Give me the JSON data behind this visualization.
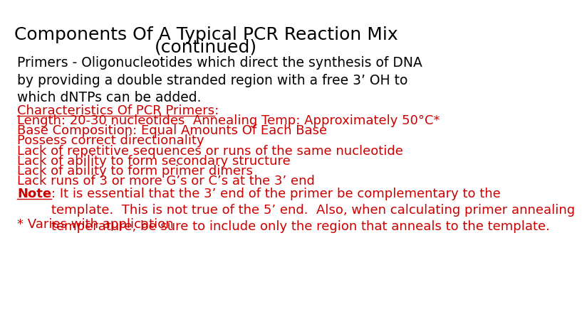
{
  "title_line1": "Components Of A Typical PCR Reaction Mix",
  "title_line2": "(continued)",
  "title_color": "#000000",
  "title_fontsize": 18,
  "bg_color": "#ffffff",
  "body_color": "#000000",
  "red_color": "#cc0000",
  "body_fontsize": 13.5,
  "red_fontsize": 13.0,
  "intro_text": "Primers - Oligonucleotides which direct the synthesis of DNA\nby providing a double stranded region with a free 3’ OH to\nwhich dNTPs can be added.",
  "characteristics_label": "Characteristics Of PCR Primers",
  "characteristics_colon": ":",
  "bullet_lines": [
    "Length: 20-30 nucleotides  Annealing Temp: Approximately 50°C*",
    "Base Composition: Equal Amounts Of Each Base",
    "Possess correct directionality",
    "Lack of repetitive sequences or runs of the same nucleotide",
    "Lack of ability to form secondary structure",
    "Lack of ability to form primer dimers",
    "Lack runs of 3 or more G’s or C’s at the 3’ end"
  ],
  "note_label": "Note",
  "note_colon": ": It is essential that the 3’ end of the primer be complementary to the\ntemplate.  This is not true of the 5’ end.  Also, when calculating primer annealing\ntemperature, be sure to include only the region that anneals to the template.",
  "footer": "* Varies with application"
}
